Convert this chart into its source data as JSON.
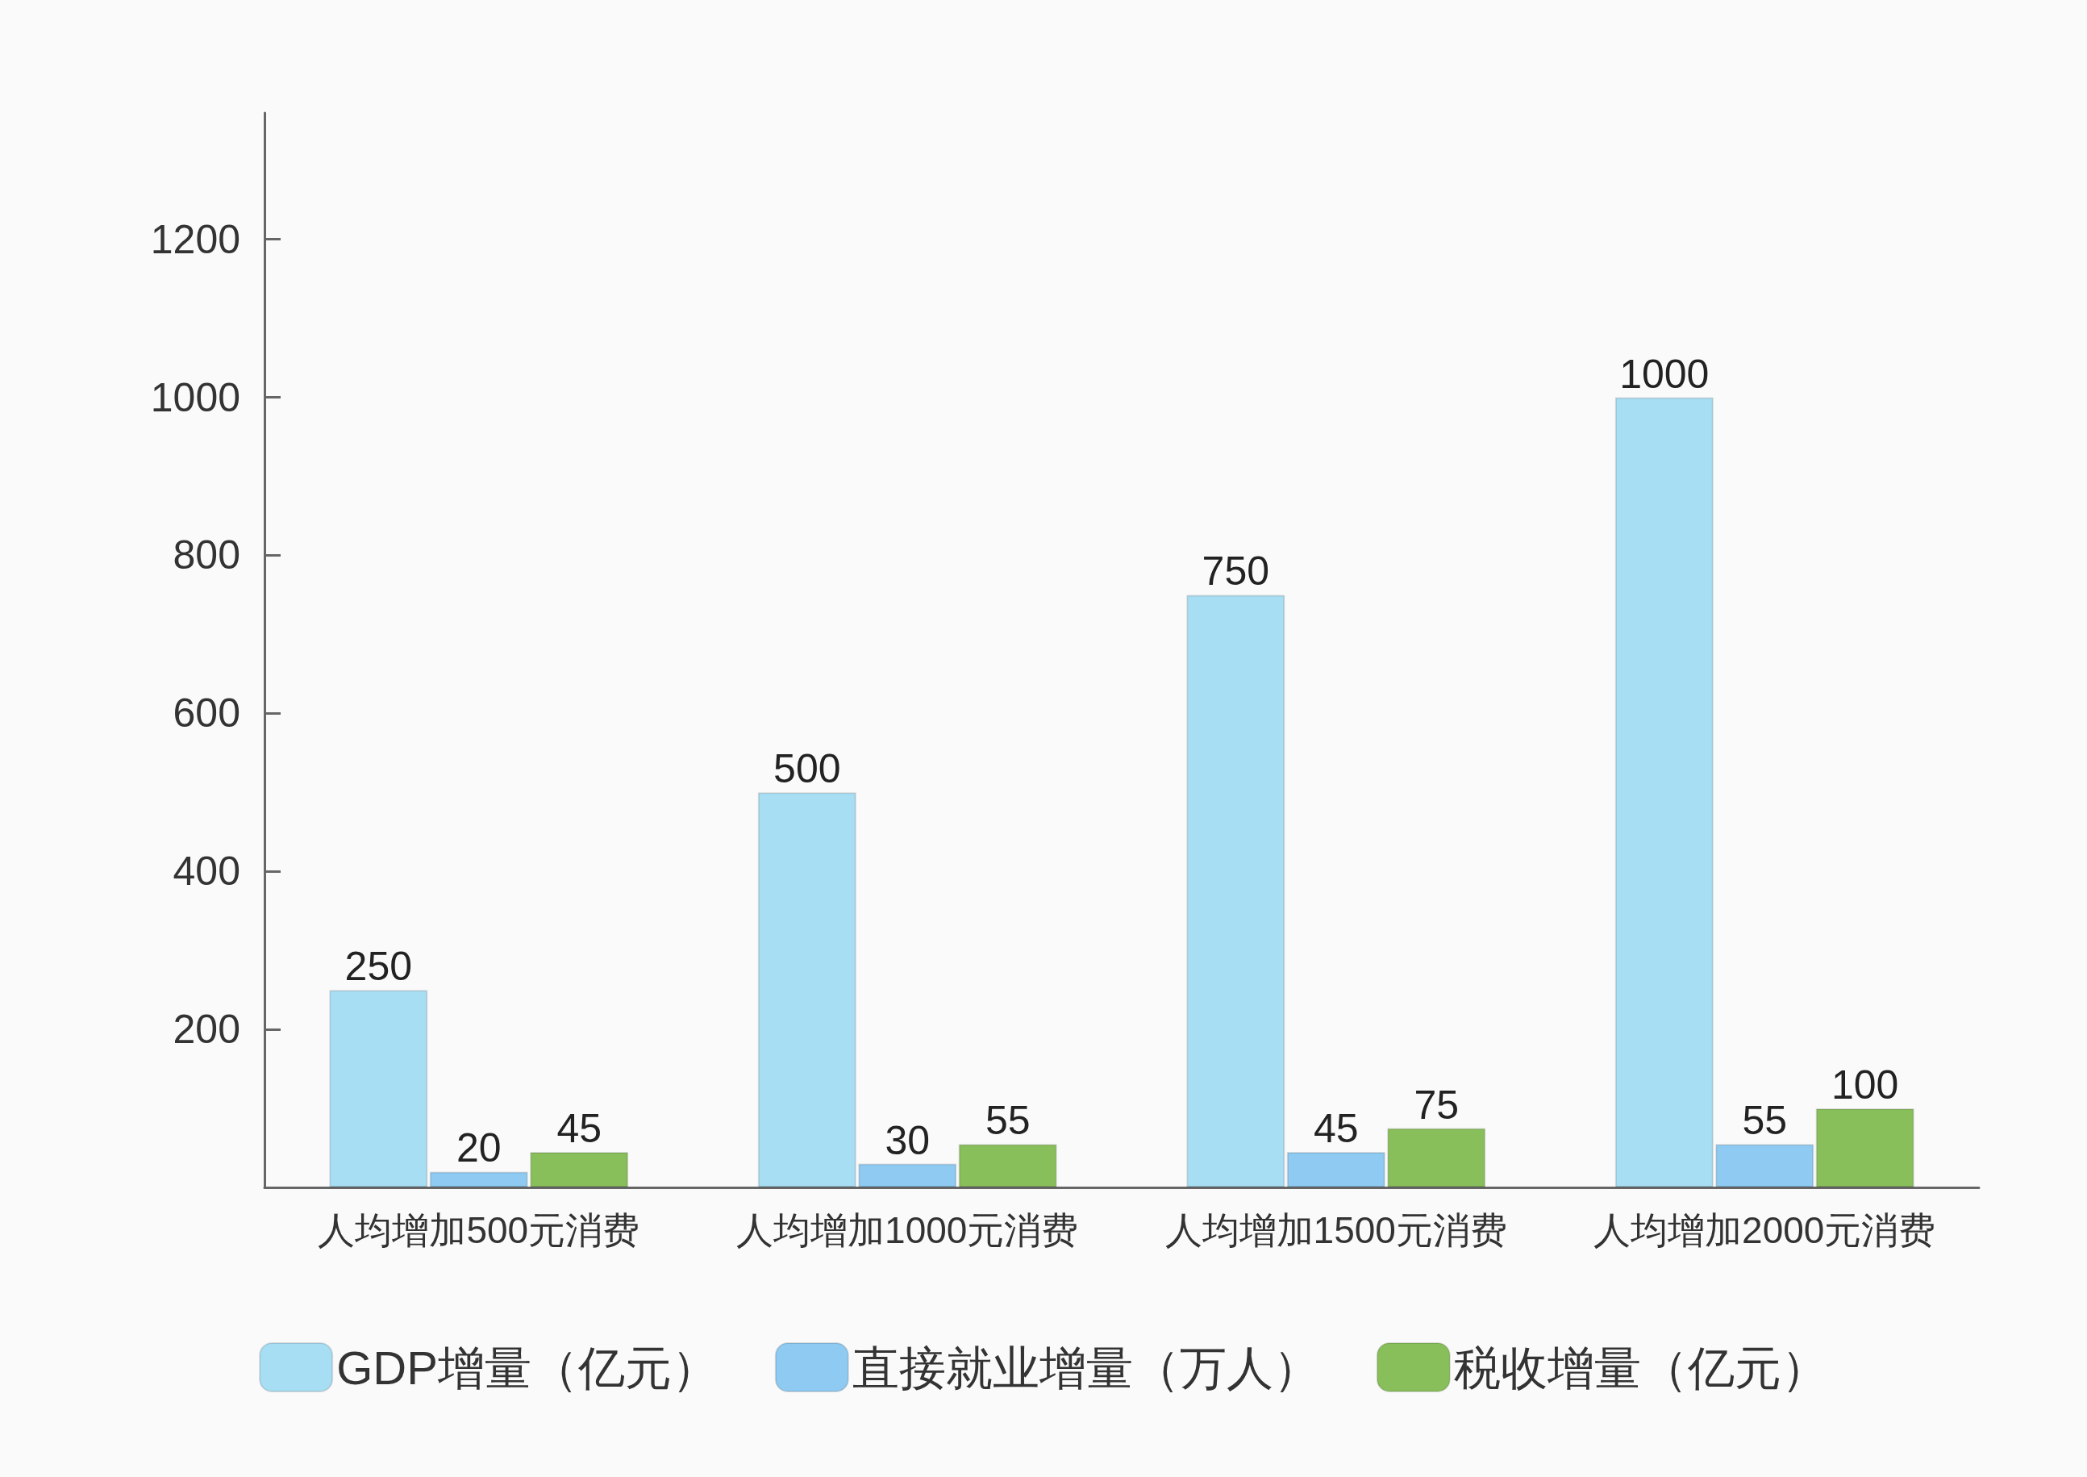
{
  "chart_data": {
    "type": "bar",
    "categories": [
      "人均增加500元消费",
      "人均增加1000元消费",
      "人均增加1500元消费",
      "人均增加2000元消费"
    ],
    "series": [
      {
        "name": "GDP增量（亿元）",
        "color": "#a8def3",
        "values": [
          250,
          500,
          750,
          1000
        ]
      },
      {
        "name": "直接就业增量（万人）",
        "color": "#8ecaf2",
        "values": [
          20,
          30,
          45,
          55
        ]
      },
      {
        "name": "税收增量（亿元）",
        "color": "#88bf5a",
        "values": [
          45,
          55,
          75,
          100
        ]
      }
    ],
    "ylim": [
      0,
      1360
    ],
    "yticks": [
      200,
      400,
      600,
      800,
      1000,
      1200
    ],
    "grid": false,
    "legend": "bottom",
    "data_labels": true
  }
}
